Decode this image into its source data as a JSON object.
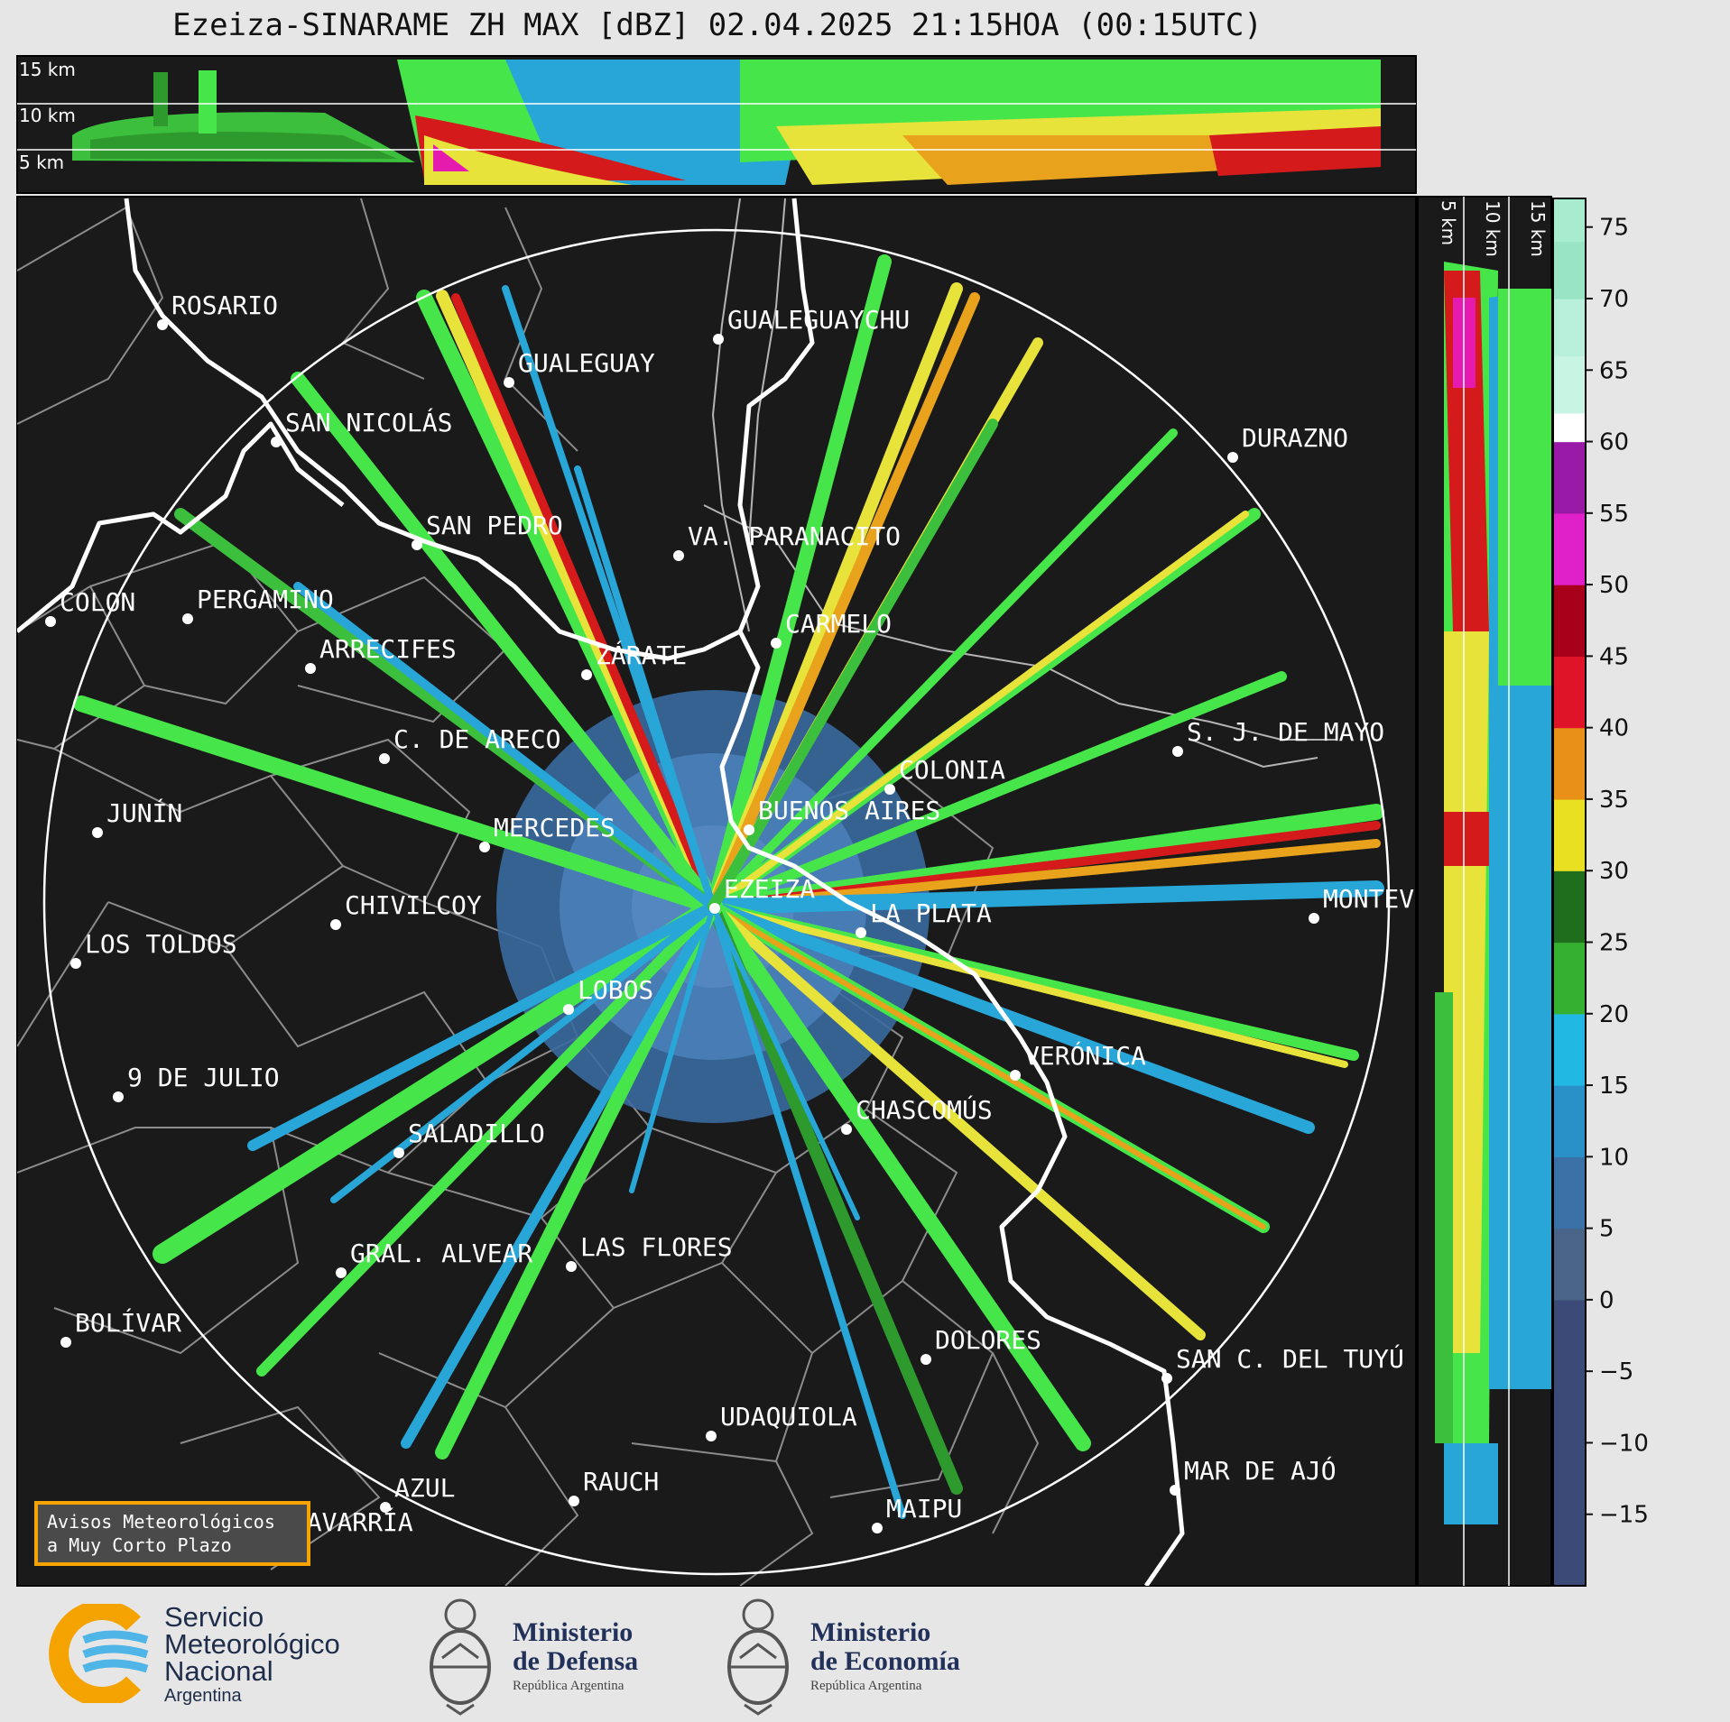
{
  "title": "Ezeiza-SINARAME ZH MAX [dBZ] 02.04.2025 21:15HOA (00:15UTC)",
  "altitude_labels_top": [
    "15 km",
    "10 km",
    "5 km"
  ],
  "altitude_labels_side": [
    "5 km",
    "10 km",
    "15 km"
  ],
  "colorbar": {
    "ticks": [
      "75",
      "70",
      "65",
      "60",
      "55",
      "50",
      "45",
      "40",
      "35",
      "30",
      "25",
      "20",
      "15",
      "10",
      "5",
      "0",
      "−5",
      "−10",
      "−15"
    ],
    "range": [
      -20,
      77
    ]
  },
  "cities": [
    {
      "name": "ROSARIO"
    },
    {
      "name": "GUALEGUAYCHU"
    },
    {
      "name": "GUALEGUAY"
    },
    {
      "name": "SAN NICOLÁS"
    },
    {
      "name": "DURAZNO"
    },
    {
      "name": "SAN PEDRO"
    },
    {
      "name": "VA. PARANACITO"
    },
    {
      "name": "COLON"
    },
    {
      "name": "PERGAMINO"
    },
    {
      "name": "CARMELO"
    },
    {
      "name": "ARRECIFES"
    },
    {
      "name": "ZÁRATE"
    },
    {
      "name": "C. DE ARECO"
    },
    {
      "name": "S. J. DE MAYO"
    },
    {
      "name": "COLONIA"
    },
    {
      "name": "JUNÍN"
    },
    {
      "name": "BUENOS AIRES"
    },
    {
      "name": "MERCEDES"
    },
    {
      "name": "EZEIZA"
    },
    {
      "name": "CHIVILCOY"
    },
    {
      "name": "MONTEV"
    },
    {
      "name": "LA PLATA"
    },
    {
      "name": "LOS TOLDOS"
    },
    {
      "name": "LOBOS"
    },
    {
      "name": "VERÓNICA"
    },
    {
      "name": "9 DE JULIO"
    },
    {
      "name": "CHASCOMÚS"
    },
    {
      "name": "SALADILLO"
    },
    {
      "name": "GRAL. ALVEAR"
    },
    {
      "name": "LAS FLORES"
    },
    {
      "name": "BOLÍVAR"
    },
    {
      "name": "DOLORES"
    },
    {
      "name": "SAN C. DEL TUYÚ"
    },
    {
      "name": "UDAQUIOLA"
    },
    {
      "name": "AZUL"
    },
    {
      "name": "RAUCH"
    },
    {
      "name": "MAR DE AJÓ"
    },
    {
      "name": "OLAVARRÍA"
    },
    {
      "name": "MAIPU"
    }
  ],
  "avisos": {
    "line1": "Avisos Meteorológicos",
    "line2": "a Muy Corto Plazo"
  },
  "footer": {
    "smn": {
      "line1": "Servicio",
      "line2": "Meteorológico",
      "line3": "Nacional",
      "line4": "Argentina"
    },
    "defensa": {
      "line1": "Ministerio",
      "line2": "de Defensa",
      "line3": "República Argentina"
    },
    "economia": {
      "line1": "Ministerio",
      "line2": "de Economía",
      "line3": "República Argentina"
    }
  },
  "colors": {
    "background": "#1a1a1a",
    "range_ring": "#ffffff",
    "coast": "#ffffff",
    "borders": "#8c8c8c",
    "accent_orange": "#f5a300"
  }
}
